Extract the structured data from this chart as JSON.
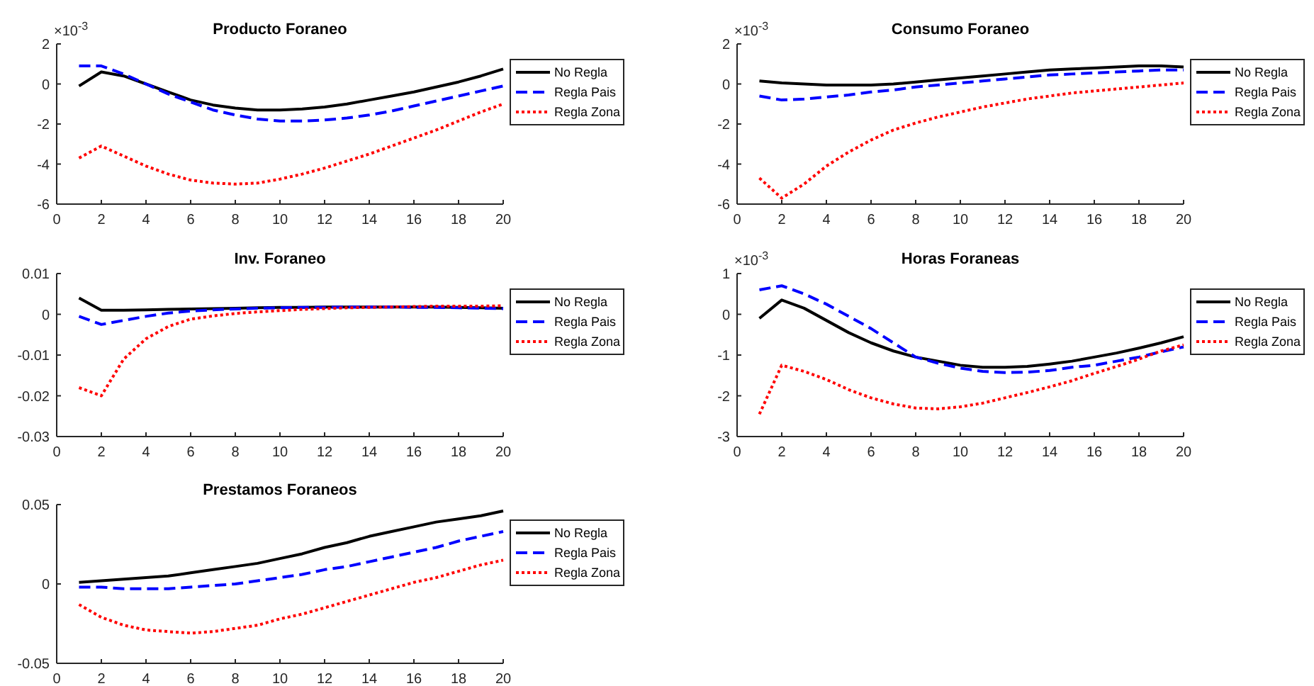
{
  "chart_data": [
    {
      "type": "line",
      "title": "Producto Foraneo",
      "annotations": [
        "×10$^{-3}$"
      ],
      "x": [
        1,
        2,
        3,
        4,
        5,
        6,
        7,
        8,
        9,
        10,
        11,
        12,
        13,
        14,
        15,
        16,
        17,
        18,
        19,
        20
      ],
      "xlim": [
        0,
        20
      ],
      "xticks": [
        0,
        2,
        4,
        6,
        8,
        10,
        12,
        14,
        16,
        18,
        20
      ],
      "ylim": [
        -6,
        2
      ],
      "yticks": [
        -6,
        -4,
        -2,
        0,
        2
      ],
      "legend": "right",
      "series": [
        {
          "name": "No Regla",
          "color": "#000000",
          "line_style": "solid",
          "values": [
            -0.1,
            0.6,
            0.4,
            0.0,
            -0.4,
            -0.8,
            -1.05,
            -1.2,
            -1.3,
            -1.3,
            -1.25,
            -1.15,
            -1.0,
            -0.8,
            -0.6,
            -0.4,
            -0.15,
            0.1,
            0.4,
            0.75
          ]
        },
        {
          "name": "Regla Pais",
          "color": "#0000ff",
          "line_style": "dashed",
          "values": [
            0.9,
            0.9,
            0.5,
            0.0,
            -0.5,
            -0.9,
            -1.3,
            -1.55,
            -1.75,
            -1.85,
            -1.85,
            -1.8,
            -1.7,
            -1.55,
            -1.35,
            -1.1,
            -0.85,
            -0.6,
            -0.35,
            -0.1
          ]
        },
        {
          "name": "Regla Zona",
          "color": "#ff0000",
          "line_style": "dotted",
          "values": [
            -3.7,
            -3.1,
            -3.6,
            -4.1,
            -4.5,
            -4.8,
            -4.95,
            -5.0,
            -4.95,
            -4.75,
            -4.5,
            -4.2,
            -3.85,
            -3.5,
            -3.1,
            -2.7,
            -2.3,
            -1.85,
            -1.4,
            -1.0
          ]
        }
      ]
    },
    {
      "type": "line",
      "title": "Consumo Foraneo",
      "annotations": [
        "×10$^{-3}$"
      ],
      "x": [
        1,
        2,
        3,
        4,
        5,
        6,
        7,
        8,
        9,
        10,
        11,
        12,
        13,
        14,
        15,
        16,
        17,
        18,
        19,
        20
      ],
      "xlim": [
        0,
        20
      ],
      "xticks": [
        0,
        2,
        4,
        6,
        8,
        10,
        12,
        14,
        16,
        18,
        20
      ],
      "ylim": [
        -6,
        2
      ],
      "yticks": [
        -6,
        -4,
        -2,
        0,
        2
      ],
      "legend": "right",
      "series": [
        {
          "name": "No Regla",
          "color": "#000000",
          "line_style": "solid",
          "values": [
            0.15,
            0.05,
            0,
            -0.05,
            -0.05,
            -0.05,
            0,
            0.1,
            0.2,
            0.3,
            0.4,
            0.5,
            0.6,
            0.7,
            0.75,
            0.8,
            0.85,
            0.9,
            0.9,
            0.85
          ]
        },
        {
          "name": "Regla Pais",
          "color": "#0000ff",
          "line_style": "dashed",
          "values": [
            -0.6,
            -0.8,
            -0.75,
            -0.65,
            -0.55,
            -0.4,
            -0.3,
            -0.15,
            -0.05,
            0.05,
            0.15,
            0.25,
            0.35,
            0.45,
            0.5,
            0.55,
            0.6,
            0.65,
            0.7,
            0.7
          ]
        },
        {
          "name": "Regla Zona",
          "color": "#ff0000",
          "line_style": "dotted",
          "values": [
            -4.7,
            -5.7,
            -5.0,
            -4.1,
            -3.4,
            -2.8,
            -2.3,
            -1.95,
            -1.65,
            -1.4,
            -1.15,
            -0.95,
            -0.75,
            -0.6,
            -0.45,
            -0.35,
            -0.25,
            -0.15,
            -0.05,
            0.05
          ]
        }
      ]
    },
    {
      "type": "line",
      "title": "Inv. Foraneo",
      "x": [
        1,
        2,
        3,
        4,
        5,
        6,
        7,
        8,
        9,
        10,
        11,
        12,
        13,
        14,
        15,
        16,
        17,
        18,
        19,
        20
      ],
      "xlim": [
        0,
        20
      ],
      "xticks": [
        0,
        2,
        4,
        6,
        8,
        10,
        12,
        14,
        16,
        18,
        20
      ],
      "ylim": [
        -0.03,
        0.01
      ],
      "yticks": [
        -0.03,
        -0.02,
        -0.01,
        0,
        0.01
      ],
      "legend": "right",
      "series": [
        {
          "name": "No Regla",
          "color": "#000000",
          "line_style": "solid",
          "values": [
            0.004,
            0.001,
            0.001,
            0.0011,
            0.0012,
            0.0013,
            0.0014,
            0.0015,
            0.0016,
            0.0017,
            0.0017,
            0.0018,
            0.0018,
            0.0018,
            0.0018,
            0.0018,
            0.0018,
            0.0017,
            0.0016,
            0.0015
          ]
        },
        {
          "name": "Regla Pais",
          "color": "#0000ff",
          "line_style": "dashed",
          "values": [
            -0.0005,
            -0.0025,
            -0.0015,
            -0.0005,
            0.0003,
            0.0008,
            0.0011,
            0.0013,
            0.0015,
            0.0016,
            0.0017,
            0.0017,
            0.0018,
            0.0018,
            0.0018,
            0.0017,
            0.0017,
            0.0016,
            0.0015,
            0.0014
          ]
        },
        {
          "name": "Regla Zona",
          "color": "#ff0000",
          "line_style": "dotted",
          "values": [
            -0.018,
            -0.02,
            -0.011,
            -0.006,
            -0.003,
            -0.0012,
            -0.0004,
            0.0002,
            0.0006,
            0.0009,
            0.0012,
            0.0014,
            0.0016,
            0.0017,
            0.0018,
            0.0019,
            0.002,
            0.002,
            0.002,
            0.0021
          ]
        }
      ]
    },
    {
      "type": "line",
      "title": "Horas Foraneas",
      "annotations": [
        "×10$^{-3}$"
      ],
      "x": [
        1,
        2,
        3,
        4,
        5,
        6,
        7,
        8,
        9,
        10,
        11,
        12,
        13,
        14,
        15,
        16,
        17,
        18,
        19,
        20
      ],
      "xlim": [
        0,
        20
      ],
      "xticks": [
        0,
        2,
        4,
        6,
        8,
        10,
        12,
        14,
        16,
        18,
        20
      ],
      "ylim": [
        -3,
        1
      ],
      "yticks": [
        -3,
        -2,
        -1,
        0,
        1
      ],
      "legend": "right",
      "series": [
        {
          "name": "No Regla",
          "color": "#000000",
          "line_style": "solid",
          "values": [
            -0.1,
            0.35,
            0.15,
            -0.15,
            -0.45,
            -0.7,
            -0.9,
            -1.05,
            -1.15,
            -1.25,
            -1.3,
            -1.3,
            -1.28,
            -1.22,
            -1.15,
            -1.05,
            -0.95,
            -0.83,
            -0.7,
            -0.55
          ]
        },
        {
          "name": "Regla Pais",
          "color": "#0000ff",
          "line_style": "dashed",
          "values": [
            0.6,
            0.7,
            0.5,
            0.25,
            -0.05,
            -0.35,
            -0.7,
            -1.05,
            -1.2,
            -1.32,
            -1.4,
            -1.43,
            -1.42,
            -1.38,
            -1.3,
            -1.25,
            -1.15,
            -1.05,
            -0.92,
            -0.8
          ]
        },
        {
          "name": "Regla Zona",
          "color": "#ff0000",
          "line_style": "dotted",
          "values": [
            -2.45,
            -1.25,
            -1.4,
            -1.6,
            -1.85,
            -2.05,
            -2.2,
            -2.3,
            -2.32,
            -2.27,
            -2.18,
            -2.05,
            -1.92,
            -1.78,
            -1.63,
            -1.45,
            -1.28,
            -1.1,
            -0.9,
            -0.75
          ]
        }
      ]
    },
    {
      "type": "line",
      "title": "Prestamos Foraneos",
      "x": [
        1,
        2,
        3,
        4,
        5,
        6,
        7,
        8,
        9,
        10,
        11,
        12,
        13,
        14,
        15,
        16,
        17,
        18,
        19,
        20
      ],
      "xlim": [
        0,
        20
      ],
      "xticks": [
        0,
        2,
        4,
        6,
        8,
        10,
        12,
        14,
        16,
        18,
        20
      ],
      "ylim": [
        -0.05,
        0.05
      ],
      "yticks": [
        -0.05,
        0,
        0.05
      ],
      "legend": "right",
      "series": [
        {
          "name": "No Regla",
          "color": "#000000",
          "line_style": "solid",
          "values": [
            0.001,
            0.002,
            0.003,
            0.004,
            0.005,
            0.007,
            0.009,
            0.011,
            0.013,
            0.016,
            0.019,
            0.023,
            0.026,
            0.03,
            0.033,
            0.036,
            0.039,
            0.041,
            0.043,
            0.046
          ]
        },
        {
          "name": "Regla Pais",
          "color": "#0000ff",
          "line_style": "dashed",
          "values": [
            -0.002,
            -0.002,
            -0.003,
            -0.003,
            -0.003,
            -0.002,
            -0.001,
            0,
            0.002,
            0.004,
            0.006,
            0.009,
            0.011,
            0.014,
            0.017,
            0.02,
            0.023,
            0.027,
            0.03,
            0.033
          ]
        },
        {
          "name": "Regla Zona",
          "color": "#ff0000",
          "line_style": "dotted",
          "values": [
            -0.013,
            -0.021,
            -0.026,
            -0.029,
            -0.03,
            -0.031,
            -0.03,
            -0.028,
            -0.026,
            -0.022,
            -0.019,
            -0.015,
            -0.011,
            -0.007,
            -0.003,
            0.001,
            0.004,
            0.008,
            0.012,
            0.015
          ]
        }
      ]
    }
  ]
}
